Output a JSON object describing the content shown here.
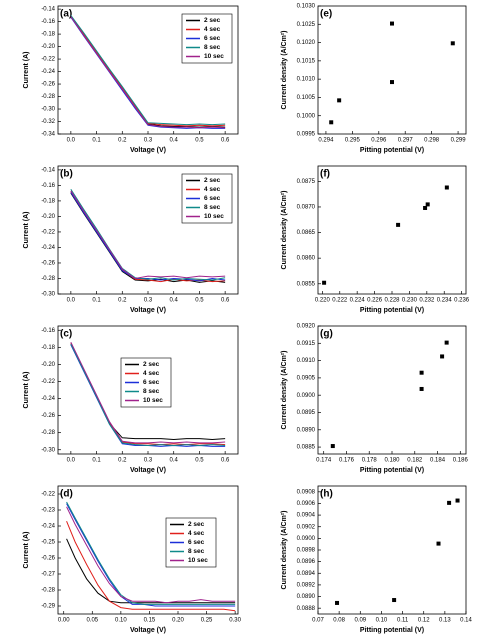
{
  "chart_data": [
    {
      "type": "line",
      "label": "(a)",
      "xlabel": "Voltage (V)",
      "ylabel": "Current (A)",
      "legend": "upper right",
      "x": [
        0,
        0.05,
        0.1,
        0.15,
        0.2,
        0.25,
        0.3,
        0.35,
        0.4,
        0.45,
        0.5,
        0.55,
        0.6
      ],
      "xlim": [
        -0.05,
        0.65
      ],
      "xticks": [
        {
          "value": 0,
          "label": "0.0"
        },
        0.1,
        0.2,
        0.3,
        0.4,
        0.5,
        0.6
      ],
      "ylim": [
        -0.34,
        -0.135
      ],
      "yticks": [
        -0.14,
        -0.16,
        -0.18,
        {
          "value": -0.2,
          "label": "-0.20"
        },
        -0.22,
        -0.24,
        -0.26,
        -0.28,
        {
          "value": -0.3,
          "label": "-0.30"
        },
        -0.32,
        -0.34
      ],
      "series": [
        {
          "name": "2 sec",
          "color": "#000000",
          "values": [
            -0.152,
            -0.181,
            -0.21,
            -0.239,
            -0.267,
            -0.296,
            -0.324,
            -0.327,
            -0.328,
            -0.328,
            -0.329,
            -0.328,
            -0.329
          ]
        },
        {
          "name": "4 sec",
          "color": "#e0201c",
          "values": [
            -0.151,
            -0.18,
            -0.209,
            -0.238,
            -0.266,
            -0.295,
            -0.323,
            -0.325,
            -0.326,
            -0.327,
            -0.326,
            -0.327,
            -0.326
          ]
        },
        {
          "name": "6 sec",
          "color": "#1c2fd8",
          "values": [
            -0.153,
            -0.183,
            -0.212,
            -0.241,
            -0.27,
            -0.299,
            -0.326,
            -0.329,
            -0.33,
            -0.331,
            -0.33,
            -0.331,
            -0.331
          ]
        },
        {
          "name": "8 sec",
          "color": "#0f8a8a",
          "values": [
            -0.15,
            -0.178,
            -0.207,
            -0.236,
            -0.264,
            -0.293,
            -0.322,
            -0.323,
            -0.324,
            -0.325,
            -0.324,
            -0.325,
            -0.324
          ]
        },
        {
          "name": "10 sec",
          "color": "#a0228c",
          "values": [
            -0.152,
            -0.182,
            -0.211,
            -0.24,
            -0.268,
            -0.297,
            -0.325,
            -0.328,
            -0.329,
            -0.329,
            -0.33,
            -0.329,
            -0.33
          ]
        }
      ]
    },
    {
      "type": "line",
      "label": "(b)",
      "xlabel": "Voltage (V)",
      "ylabel": "Current (A)",
      "legend": "upper right",
      "x": [
        0,
        0.05,
        0.1,
        0.15,
        0.2,
        0.25,
        0.3,
        0.35,
        0.4,
        0.45,
        0.5,
        0.55,
        0.6
      ],
      "xlim": [
        -0.05,
        0.65
      ],
      "xticks": [
        {
          "value": 0,
          "label": "0.0"
        },
        0.1,
        0.2,
        0.3,
        0.4,
        0.5,
        0.6
      ],
      "ylim": [
        -0.3,
        -0.135
      ],
      "yticks": [
        -0.14,
        -0.16,
        -0.18,
        {
          "value": -0.2,
          "label": "-0.20"
        },
        -0.22,
        -0.24,
        -0.26,
        -0.28,
        {
          "value": -0.3,
          "label": "-0.30"
        }
      ],
      "series": [
        {
          "name": "2 sec",
          "color": "#000000",
          "values": [
            -0.17,
            -0.196,
            -0.221,
            -0.246,
            -0.271,
            -0.282,
            -0.283,
            -0.281,
            -0.284,
            -0.282,
            -0.285,
            -0.283,
            -0.285
          ]
        },
        {
          "name": "4 sec",
          "color": "#e0201c",
          "values": [
            -0.168,
            -0.193,
            -0.219,
            -0.244,
            -0.269,
            -0.281,
            -0.282,
            -0.284,
            -0.281,
            -0.283,
            -0.282,
            -0.284,
            -0.283
          ]
        },
        {
          "name": "6 sec",
          "color": "#1c2fd8",
          "values": [
            -0.169,
            -0.195,
            -0.22,
            -0.245,
            -0.27,
            -0.28,
            -0.28,
            -0.282,
            -0.28,
            -0.281,
            -0.283,
            -0.28,
            -0.282
          ]
        },
        {
          "name": "8 sec",
          "color": "#0f8a8a",
          "values": [
            -0.165,
            -0.191,
            -0.216,
            -0.242,
            -0.267,
            -0.279,
            -0.281,
            -0.279,
            -0.282,
            -0.28,
            -0.281,
            -0.282,
            -0.279
          ]
        },
        {
          "name": "10 sec",
          "color": "#a0228c",
          "values": [
            -0.167,
            -0.193,
            -0.218,
            -0.243,
            -0.268,
            -0.28,
            -0.277,
            -0.278,
            -0.277,
            -0.279,
            -0.277,
            -0.278,
            -0.277
          ]
        }
      ]
    },
    {
      "type": "line",
      "label": "(c)",
      "xlabel": "Voltage (V)",
      "ylabel": "Current (A)",
      "legend": "center",
      "x": [
        0,
        0.05,
        0.1,
        0.15,
        0.2,
        0.25,
        0.3,
        0.35,
        0.4,
        0.45,
        0.5,
        0.55,
        0.6
      ],
      "xlim": [
        -0.05,
        0.65
      ],
      "xticks": [
        {
          "value": 0,
          "label": "0.0"
        },
        0.1,
        0.2,
        0.3,
        0.4,
        0.5,
        0.6
      ],
      "ylim": [
        -0.305,
        -0.155
      ],
      "yticks": [
        -0.16,
        -0.18,
        {
          "value": -0.2,
          "label": "-0.20"
        },
        -0.22,
        -0.24,
        -0.26,
        -0.28,
        {
          "value": -0.3,
          "label": "-0.30"
        }
      ],
      "series": [
        {
          "name": "2 sec",
          "color": "#000000",
          "values": [
            -0.176,
            -0.207,
            -0.238,
            -0.269,
            -0.286,
            -0.287,
            -0.287,
            -0.287,
            -0.288,
            -0.287,
            -0.287,
            -0.288,
            -0.287
          ]
        },
        {
          "name": "4 sec",
          "color": "#e0201c",
          "values": [
            -0.175,
            -0.206,
            -0.237,
            -0.268,
            -0.291,
            -0.293,
            -0.293,
            -0.294,
            -0.293,
            -0.294,
            -0.293,
            -0.293,
            -0.294
          ]
        },
        {
          "name": "6 sec",
          "color": "#1c2fd8",
          "values": [
            -0.177,
            -0.208,
            -0.239,
            -0.27,
            -0.293,
            -0.295,
            -0.295,
            -0.296,
            -0.295,
            -0.296,
            -0.295,
            -0.296,
            -0.296
          ]
        },
        {
          "name": "8 sec",
          "color": "#0f8a8a",
          "values": [
            -0.176,
            -0.207,
            -0.238,
            -0.27,
            -0.292,
            -0.294,
            -0.295,
            -0.294,
            -0.295,
            -0.294,
            -0.295,
            -0.294,
            -0.295
          ]
        },
        {
          "name": "10 sec",
          "color": "#a0228c",
          "values": [
            -0.174,
            -0.205,
            -0.236,
            -0.267,
            -0.29,
            -0.292,
            -0.292,
            -0.291,
            -0.292,
            -0.291,
            -0.292,
            -0.292,
            -0.291
          ]
        }
      ]
    },
    {
      "type": "line",
      "label": "(d)",
      "xlabel": "Voltage (V)",
      "ylabel": "Current (A)",
      "legend": "center right",
      "x": [
        0.005,
        0.02,
        0.04,
        0.06,
        0.08,
        0.1,
        0.12,
        0.14,
        0.16,
        0.18,
        0.2,
        0.22,
        0.24,
        0.26,
        0.28,
        0.3
      ],
      "xlim": [
        -0.01,
        0.305
      ],
      "xticks": [
        {
          "value": 0,
          "label": "0.00"
        },
        0.05,
        {
          "value": 0.1,
          "label": "0.10"
        },
        0.15,
        {
          "value": 0.2,
          "label": "0.20"
        },
        0.25,
        {
          "value": 0.3,
          "label": "0.30"
        }
      ],
      "ylim": [
        -0.295,
        -0.215
      ],
      "yticks": [
        -0.22,
        -0.23,
        -0.24,
        -0.25,
        -0.26,
        -0.27,
        -0.28,
        -0.29
      ],
      "series": [
        {
          "name": "2 sec",
          "color": "#000000",
          "values": [
            -0.248,
            -0.26,
            -0.273,
            -0.282,
            -0.287,
            -0.288,
            -0.288,
            -0.288,
            -0.288,
            -0.288,
            -0.288,
            -0.288,
            -0.288,
            -0.288,
            -0.288,
            -0.288
          ]
        },
        {
          "name": "4 sec",
          "color": "#e0201c",
          "values": [
            -0.237,
            -0.25,
            -0.264,
            -0.277,
            -0.287,
            -0.291,
            -0.292,
            -0.292,
            -0.292,
            -0.292,
            -0.292,
            -0.292,
            -0.292,
            -0.292,
            -0.292,
            -0.293
          ]
        },
        {
          "name": "6 sec",
          "color": "#1c2fd8",
          "values": [
            -0.226,
            -0.236,
            -0.249,
            -0.262,
            -0.274,
            -0.284,
            -0.289,
            -0.289,
            -0.29,
            -0.29,
            -0.29,
            -0.29,
            -0.29,
            -0.29,
            -0.29,
            -0.29
          ]
        },
        {
          "name": "8 sec",
          "color": "#0f8a8a",
          "values": [
            -0.225,
            -0.235,
            -0.248,
            -0.261,
            -0.273,
            -0.283,
            -0.288,
            -0.289,
            -0.289,
            -0.289,
            -0.289,
            -0.289,
            -0.289,
            -0.289,
            -0.289,
            -0.289
          ]
        },
        {
          "name": "10 sec",
          "color": "#a0228c",
          "values": [
            -0.228,
            -0.239,
            -0.252,
            -0.265,
            -0.276,
            -0.284,
            -0.287,
            -0.287,
            -0.287,
            -0.288,
            -0.287,
            -0.287,
            -0.286,
            -0.287,
            -0.287,
            -0.287
          ]
        }
      ]
    },
    {
      "type": "scatter",
      "label": "(e)",
      "xlabel": "Pitting potential (V)",
      "ylabel": "Current density (A/Cm²)",
      "color": "#000000",
      "x": [
        0.2942,
        0.2945,
        0.2965,
        0.2965,
        0.2988
      ],
      "values": [
        0.09982,
        0.10042,
        0.10092,
        0.10252,
        0.10198
      ],
      "xlim": [
        0.2937,
        0.2993
      ],
      "xticks": [
        0.294,
        0.295,
        0.296,
        0.297,
        0.298,
        0.299
      ],
      "ylim": [
        0.0995,
        0.103
      ],
      "yticks": [
        0.0995,
        {
          "value": 0.1,
          "label": "0.1000"
        },
        0.1005,
        {
          "value": 0.101,
          "label": "0.1010"
        },
        0.1015,
        {
          "value": 0.102,
          "label": "0.1020"
        },
        0.1025,
        {
          "value": 0.103,
          "label": "0.1030"
        }
      ]
    },
    {
      "type": "scatter",
      "label": "(f)",
      "xlabel": "Pitting potential (V)",
      "ylabel": "Current density (A/Cm²)",
      "color": "#000000",
      "x": [
        0.2202,
        0.2287,
        0.2318,
        0.2321,
        0.2343
      ],
      "values": [
        0.08552,
        0.08665,
        0.08698,
        0.08705,
        0.08738
      ],
      "xlim": [
        0.2195,
        0.2365
      ],
      "xticks": [
        {
          "value": 0.22,
          "label": "0.220"
        },
        0.222,
        0.224,
        0.226,
        0.228,
        {
          "value": 0.23,
          "label": "0.230"
        },
        0.232,
        0.234,
        0.236
      ],
      "ylim": [
        0.0853,
        0.0878
      ],
      "yticks": [
        0.0855,
        {
          "value": 0.086,
          "label": "0.0860"
        },
        0.0865,
        {
          "value": 0.087,
          "label": "0.0870"
        },
        0.0875
      ]
    },
    {
      "type": "scatter",
      "label": "(g)",
      "xlabel": "Pitting potential (V)",
      "ylabel": "Current density (A/Cm²)",
      "color": "#000000",
      "x": [
        0.1748,
        0.1826,
        0.1826,
        0.1844,
        0.1848
      ],
      "values": [
        0.08853,
        0.09018,
        0.09065,
        0.09112,
        0.09152
      ],
      "xlim": [
        0.1735,
        0.1865
      ],
      "xticks": [
        0.174,
        0.176,
        0.178,
        {
          "value": 0.18,
          "label": "0.180"
        },
        0.182,
        0.184,
        0.186
      ],
      "ylim": [
        0.0883,
        0.092
      ],
      "yticks": [
        0.0885,
        {
          "value": 0.089,
          "label": "0.0890"
        },
        0.0895,
        {
          "value": 0.09,
          "label": "0.0900"
        },
        0.0905,
        {
          "value": 0.091,
          "label": "0.0910"
        },
        0.0915,
        {
          "value": 0.092,
          "label": "0.0920"
        }
      ]
    },
    {
      "type": "scatter",
      "label": "(h)",
      "xlabel": "Pitting potential (V)",
      "ylabel": "Current density (A/Cm²)",
      "color": "#000000",
      "x": [
        0.079,
        0.106,
        0.127,
        0.132,
        0.136
      ],
      "values": [
        0.08889,
        0.08894,
        0.08991,
        0.09061,
        0.09065
      ],
      "xlim": [
        0.07,
        0.14
      ],
      "xticks": [
        0.07,
        0.08,
        0.09,
        {
          "value": 0.1,
          "label": "0.10"
        },
        0.11,
        0.12,
        0.13,
        0.14
      ],
      "ylim": [
        0.0887,
        0.0909
      ],
      "yticks": [
        0.0888,
        {
          "value": 0.089,
          "label": "0.0890"
        },
        0.0892,
        0.0894,
        0.0896,
        0.0898,
        {
          "value": 0.09,
          "label": "0.0900"
        },
        0.0902,
        0.0904,
        0.0906,
        0.0908
      ]
    }
  ]
}
